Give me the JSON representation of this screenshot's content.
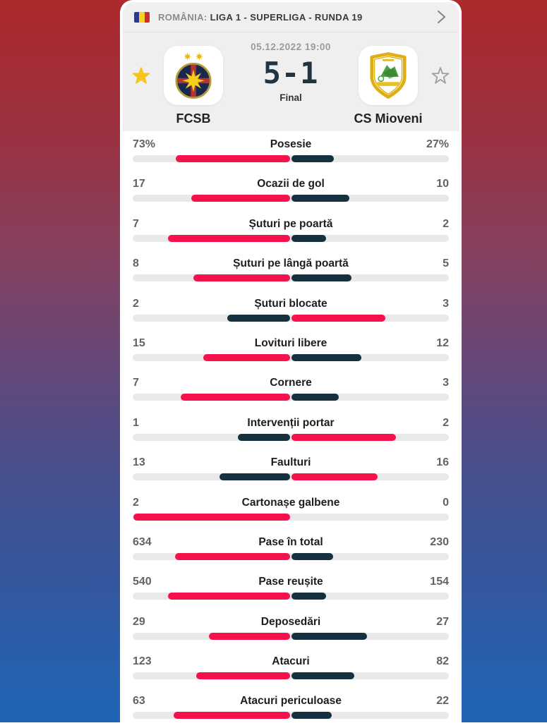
{
  "colors": {
    "lead": "#f5114b",
    "trail": "#15303e",
    "track": "#e9e9e9",
    "header_bg": "#efeff0",
    "star_active": "#f5c51a",
    "star_inactive": "#9e9e9e"
  },
  "league_header": {
    "flag_icon": "romania-flag",
    "country": "ROMÂNIA:",
    "competition": "LIGA 1 - SUPERLIGA - RUNDA 19"
  },
  "match": {
    "datetime": "05.12.2022 19:00",
    "score": "5-1",
    "status": "Final",
    "home": {
      "name": "FCSB",
      "favorite": true
    },
    "away": {
      "name": "CS Mioveni",
      "favorite": false
    }
  },
  "stats": [
    {
      "label": "Posesie",
      "home": "73%",
      "away": "27%",
      "home_value": 73,
      "away_value": 27
    },
    {
      "label": "Ocazii de gol",
      "home": "17",
      "away": "10",
      "home_value": 17,
      "away_value": 10
    },
    {
      "label": "Șuturi pe poartă",
      "home": "7",
      "away": "2",
      "home_value": 7,
      "away_value": 2
    },
    {
      "label": "Șuturi pe lângă poartă",
      "home": "8",
      "away": "5",
      "home_value": 8,
      "away_value": 5
    },
    {
      "label": "Șuturi blocate",
      "home": "2",
      "away": "3",
      "home_value": 2,
      "away_value": 3
    },
    {
      "label": "Lovituri libere",
      "home": "15",
      "away": "12",
      "home_value": 15,
      "away_value": 12
    },
    {
      "label": "Cornere",
      "home": "7",
      "away": "3",
      "home_value": 7,
      "away_value": 3
    },
    {
      "label": "Intervenții portar",
      "home": "1",
      "away": "2",
      "home_value": 1,
      "away_value": 2
    },
    {
      "label": "Faulturi",
      "home": "13",
      "away": "16",
      "home_value": 13,
      "away_value": 16
    },
    {
      "label": "Cartonașe galbene",
      "home": "2",
      "away": "0",
      "home_value": 2,
      "away_value": 0
    },
    {
      "label": "Pase în total",
      "home": "634",
      "away": "230",
      "home_value": 634,
      "away_value": 230
    },
    {
      "label": "Pase reușite",
      "home": "540",
      "away": "154",
      "home_value": 540,
      "away_value": 154
    },
    {
      "label": "Deposedări",
      "home": "29",
      "away": "27",
      "home_value": 29,
      "away_value": 27
    },
    {
      "label": "Atacuri",
      "home": "123",
      "away": "82",
      "home_value": 123,
      "away_value": 82
    },
    {
      "label": "Atacuri periculoase",
      "home": "63",
      "away": "22",
      "home_value": 63,
      "away_value": 22
    }
  ]
}
